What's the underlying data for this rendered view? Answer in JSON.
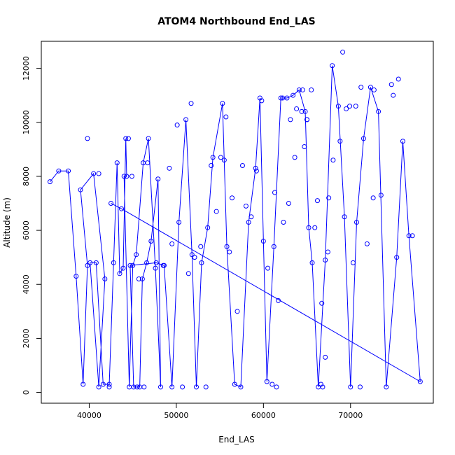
{
  "chart_data": {
    "type": "line",
    "title": "ATOM4 Northbound End_LAS",
    "xlabel": "End_LAS",
    "ylabel": "Altitude (m)",
    "xlim": [
      34500,
      79500
    ],
    "ylim": [
      -400,
      13000
    ],
    "x_ticks": [
      40000,
      50000,
      60000,
      70000
    ],
    "x_tick_labels": [
      "40000",
      "50000",
      "60000",
      "70000"
    ],
    "y_ticks": [
      0,
      2000,
      4000,
      6000,
      8000,
      10000,
      12000
    ],
    "y_tick_labels": [
      "0",
      "2000",
      "4000",
      "6000",
      "8000",
      "10000",
      "12000"
    ],
    "grid": false,
    "series": [
      {
        "color": "#0000ff",
        "marker": "open-circle",
        "x": [
          35500,
          36500,
          37600,
          38500,
          39300,
          39800,
          39000,
          40500,
          41800,
          41100,
          40100,
          40800,
          41600,
          42300,
          42800,
          43200,
          43500,
          43900,
          44200,
          44300,
          44000,
          44600,
          45000,
          45400,
          46200,
          46800,
          47600,
          48200,
          47900,
          47100,
          46600,
          46100,
          45800,
          45500,
          45100,
          44700,
          47700,
          48600,
          49500,
          50300,
          51100,
          51800,
          52300,
          52900,
          53600,
          54200,
          55300,
          55800,
          56700,
          57400,
          58300,
          59100,
          59600,
          60000,
          60400,
          61200,
          62000,
          62700,
          63400,
          64100,
          64800,
          65200,
          65600,
          66300,
          67100,
          67900,
          68600,
          69300,
          70000,
          70700,
          71500,
          72300,
          73200,
          74100,
          75300,
          76000,
          76700,
          78000,
          43700,
          42500
        ],
        "y": [
          7800,
          8200,
          8200,
          4300,
          300,
          4700,
          7500,
          8100,
          4200,
          200,
          4800,
          4800,
          300,
          300,
          4800,
          8500,
          4400,
          4600,
          9400,
          8000,
          8000,
          200,
          4700,
          5100,
          8500,
          9400,
          4600,
          200,
          7900,
          5600,
          4800,
          4200,
          200,
          200,
          200,
          4700,
          4800,
          4700,
          200,
          6300,
          10100,
          5100,
          200,
          4800,
          6100,
          8700,
          10700,
          5400,
          300,
          200,
          6300,
          8300,
          10900,
          5600,
          400,
          5400,
          10900,
          10900,
          11000,
          11200,
          10400,
          6100,
          4800,
          200,
          4900,
          12100,
          10600,
          6500,
          200,
          6300,
          9400,
          11300,
          10400,
          200,
          5000,
          9300,
          5800,
          400,
          6800,
          7000
        ],
        "extra_points": {
          "x": [
            39800,
            41100,
            42300,
            44500,
            44900,
            45700,
            46700,
            46300,
            48500,
            49200,
            49500,
            50100,
            50700,
            51400,
            51700,
            52100,
            52800,
            53400,
            54000,
            54600,
            55100,
            55500,
            55700,
            56100,
            56400,
            57000,
            57600,
            58000,
            58600,
            59200,
            59800,
            60500,
            61300,
            61700,
            62300,
            62900,
            63600,
            64400,
            64700,
            65000,
            65500,
            65900,
            66200,
            66700,
            67100,
            67500,
            68000,
            68800,
            69500,
            70300,
            71100,
            71900,
            72700,
            73500,
            74700,
            75500,
            77100,
            61500,
            61000,
            62200,
            63100,
            63800,
            64500,
            65000,
            66600,
            66800,
            67400,
            69100,
            69900,
            70600,
            71200,
            72600,
            74900
          ],
          "y": [
            9400,
            8100,
            200,
            9400,
            8000,
            4200,
            8500,
            200,
            4700,
            8300,
            5500,
            9900,
            200,
            4400,
            10700,
            5000,
            5400,
            200,
            8400,
            6700,
            8700,
            8600,
            10200,
            5200,
            7200,
            3000,
            8400,
            6900,
            6500,
            8200,
            10800,
            4600,
            7400,
            3400,
            6300,
            7000,
            8700,
            10400,
            9100,
            10100,
            11200,
            6100,
            7100,
            3300,
            1300,
            7200,
            8600,
            9300,
            10500,
            4800,
            200,
            5500,
            11200,
            7300,
            11400,
            11600,
            5800,
            200,
            300,
            10900,
            10100,
            10500,
            11200,
            10100,
            300,
            200,
            5200,
            12600,
            10600,
            10600,
            11300,
            7200,
            11000
          ]
        }
      }
    ]
  }
}
